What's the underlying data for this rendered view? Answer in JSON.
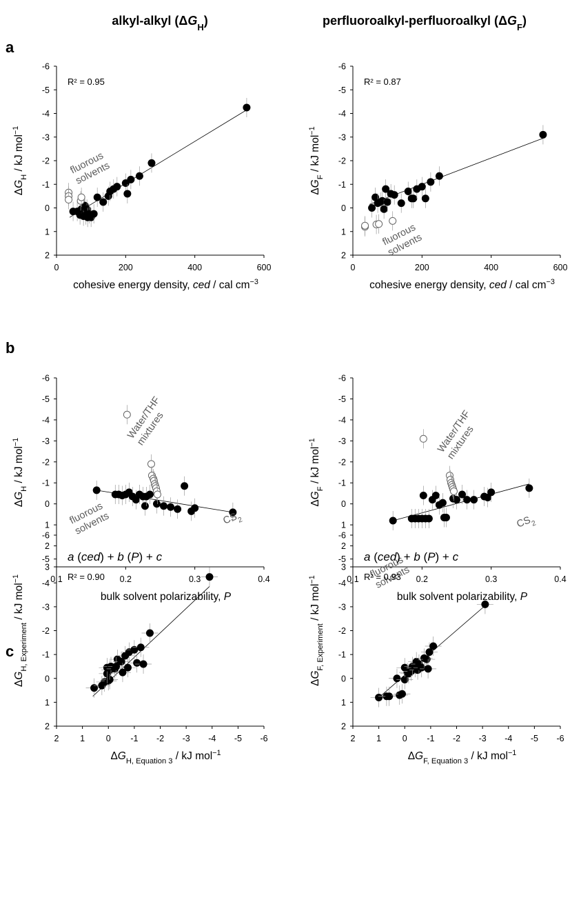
{
  "headers": {
    "left": [
      "alkyl-alkyl (",
      "Δ",
      "G",
      "H",
      ")"
    ],
    "right": [
      "perfluoroalkyl-perfluoroalkyl (",
      "Δ",
      "G",
      "F",
      ")"
    ]
  },
  "panel_letters": [
    "a",
    "b",
    "c"
  ],
  "chart_data": [
    {
      "id": "a-left",
      "type": "scatter",
      "ylabel": [
        "Δ",
        "G",
        "H",
        " / kJ mol",
        "−1"
      ],
      "xlabel": [
        "cohesive energy density, ",
        "ced",
        " / cal cm",
        "−3"
      ],
      "xlim": [
        0,
        600
      ],
      "ylim": [
        2,
        -6
      ],
      "xticks": [
        0,
        200,
        400,
        600
      ],
      "yticks": [
        2,
        1,
        0,
        -1,
        -2,
        -3,
        -4,
        -5,
        -6
      ],
      "r2": "R² = 0.95",
      "annotation": "fluorous\nsolvents",
      "series": [
        {
          "filled": true,
          "points": [
            [
              48,
              0.15
            ],
            [
              60,
              0.15
            ],
            [
              68,
              0.3
            ],
            [
              72,
              0.05
            ],
            [
              78,
              0.35
            ],
            [
              82,
              -0.1
            ],
            [
              85,
              0.3
            ],
            [
              88,
              0.05
            ],
            [
              90,
              0.4
            ],
            [
              95,
              0.25
            ],
            [
              100,
              0.4
            ],
            [
              108,
              0.25
            ],
            [
              118,
              -0.45
            ],
            [
              135,
              -0.25
            ],
            [
              150,
              -0.5
            ],
            [
              155,
              -0.7
            ],
            [
              165,
              -0.8
            ],
            [
              175,
              -0.9
            ],
            [
              200,
              -1.05
            ],
            [
              205,
              -0.6
            ],
            [
              215,
              -1.2
            ],
            [
              240,
              -1.35
            ],
            [
              275,
              -1.9
            ],
            [
              550,
              -4.25
            ]
          ]
        },
        {
          "filled": false,
          "points": [
            [
              35,
              -0.65
            ],
            [
              35,
              -0.5
            ],
            [
              35,
              -0.35
            ],
            [
              70,
              -0.3
            ],
            [
              72,
              -0.45
            ]
          ]
        }
      ],
      "fit_line": [
        [
          38,
          0.4
        ],
        [
          550,
          -4.15
        ]
      ]
    },
    {
      "id": "a-right",
      "type": "scatter",
      "ylabel": [
        "Δ",
        "G",
        "F",
        " / kJ mol",
        "−1"
      ],
      "xlabel": [
        "cohesive energy density, ",
        "ced",
        " / cal cm",
        "−3"
      ],
      "xlim": [
        0,
        600
      ],
      "ylim": [
        2,
        -6
      ],
      "xticks": [
        0,
        200,
        400,
        600
      ],
      "yticks": [
        2,
        1,
        0,
        -1,
        -2,
        -3,
        -4,
        -5,
        -6
      ],
      "r2": "R² = 0.87",
      "annotation": "fluorous\nsolvents",
      "series": [
        {
          "filled": true,
          "points": [
            [
              55,
              0
            ],
            [
              65,
              -0.45
            ],
            [
              72,
              -0.2
            ],
            [
              80,
              -0.25
            ],
            [
              85,
              -0.3
            ],
            [
              90,
              0.05
            ],
            [
              95,
              -0.8
            ],
            [
              100,
              -0.25
            ],
            [
              110,
              -0.6
            ],
            [
              120,
              -0.55
            ],
            [
              140,
              -0.2
            ],
            [
              160,
              -0.7
            ],
            [
              170,
              -0.4
            ],
            [
              175,
              -0.4
            ],
            [
              185,
              -0.8
            ],
            [
              200,
              -0.9
            ],
            [
              210,
              -0.4
            ],
            [
              225,
              -1.1
            ],
            [
              250,
              -1.35
            ],
            [
              550,
              -3.1
            ]
          ]
        },
        {
          "filled": false,
          "points": [
            [
              35,
              0.8
            ],
            [
              35,
              0.75
            ],
            [
              68,
              0.7
            ],
            [
              75,
              0.68
            ],
            [
              115,
              0.55
            ]
          ]
        }
      ],
      "fit_line": [
        [
          48,
          -0.15
        ],
        [
          550,
          -2.95
        ]
      ]
    },
    {
      "id": "b-left",
      "type": "scatter",
      "ylabel": [
        "Δ",
        "G",
        "H",
        " / kJ mol",
        "−1"
      ],
      "xlabel": [
        "bulk solvent polarizability, ",
        "P"
      ],
      "xlim": [
        0.1,
        0.4
      ],
      "ylim": [
        3,
        -6
      ],
      "xticks": [
        0.1,
        0.2,
        0.3,
        0.4
      ],
      "yticks": [
        3,
        2,
        1,
        0,
        -1,
        -2,
        -3,
        -4,
        -5,
        -6
      ],
      "annotation": "fluorous\nsolvents",
      "annotation2": "Water/THF\nmixtures",
      "annotation3": [
        "CS",
        "2"
      ],
      "series": [
        {
          "filled": true,
          "points": [
            [
              0.158,
              -0.65
            ],
            [
              0.185,
              -0.45
            ],
            [
              0.19,
              -0.45
            ],
            [
              0.195,
              -0.4
            ],
            [
              0.2,
              -0.45
            ],
            [
              0.205,
              -0.55
            ],
            [
              0.21,
              -0.35
            ],
            [
              0.215,
              -0.2
            ],
            [
              0.22,
              -0.45
            ],
            [
              0.225,
              -0.35
            ],
            [
              0.228,
              0.1
            ],
            [
              0.23,
              -0.35
            ],
            [
              0.235,
              -0.45
            ],
            [
              0.245,
              0
            ],
            [
              0.255,
              0.1
            ],
            [
              0.265,
              0.15
            ],
            [
              0.275,
              0.25
            ],
            [
              0.285,
              -0.85
            ],
            [
              0.295,
              0.35
            ],
            [
              0.3,
              0.2
            ],
            [
              0.355,
              0.4
            ]
          ]
        },
        {
          "filled": false,
          "points": [
            [
              0.202,
              -4.25
            ],
            [
              0.237,
              -1.9
            ],
            [
              0.238,
              -1.35
            ],
            [
              0.24,
              -1.2
            ],
            [
              0.241,
              -1.1
            ],
            [
              0.242,
              -0.95
            ],
            [
              0.243,
              -0.85
            ],
            [
              0.244,
              -0.75
            ],
            [
              0.245,
              -0.6
            ],
            [
              0.246,
              -0.45
            ]
          ]
        }
      ],
      "fit_line": [
        [
          0.158,
          -0.65
        ],
        [
          0.355,
          0.4
        ]
      ]
    },
    {
      "id": "b-right",
      "type": "scatter",
      "ylabel": [
        "Δ",
        "G",
        "F",
        " / kJ mol",
        "−1"
      ],
      "xlabel": [
        "bulk solvent polarizability, ",
        "P"
      ],
      "xlim": [
        0.1,
        0.4
      ],
      "ylim": [
        3,
        -6
      ],
      "xticks": [
        0.1,
        0.2,
        0.3,
        0.4
      ],
      "yticks": [
        3,
        2,
        1,
        0,
        -1,
        -2,
        -3,
        -4,
        -5,
        -6
      ],
      "annotation": "fluorous\nsolvents",
      "annotation2": "Water/THF\nmixtures",
      "annotation3": [
        "CS",
        "2"
      ],
      "series": [
        {
          "filled": true,
          "points": [
            [
              0.158,
              0.8
            ],
            [
              0.185,
              0.7
            ],
            [
              0.19,
              0.7
            ],
            [
              0.195,
              0.7
            ],
            [
              0.2,
              0.7
            ],
            [
              0.202,
              -0.4
            ],
            [
              0.205,
              0.7
            ],
            [
              0.21,
              0.7
            ],
            [
              0.215,
              -0.2
            ],
            [
              0.22,
              -0.4
            ],
            [
              0.225,
              0.05
            ],
            [
              0.23,
              -0.05
            ],
            [
              0.232,
              0.65
            ],
            [
              0.235,
              0.65
            ],
            [
              0.245,
              -0.25
            ],
            [
              0.25,
              -0.2
            ],
            [
              0.258,
              -0.45
            ],
            [
              0.265,
              -0.2
            ],
            [
              0.275,
              -0.2
            ],
            [
              0.29,
              -0.35
            ],
            [
              0.295,
              -0.3
            ],
            [
              0.3,
              -0.55
            ],
            [
              0.355,
              -0.75
            ]
          ]
        },
        {
          "filled": false,
          "points": [
            [
              0.202,
              -3.1
            ],
            [
              0.24,
              -1.35
            ],
            [
              0.241,
              -1.15
            ],
            [
              0.242,
              -1.0
            ],
            [
              0.243,
              -0.9
            ],
            [
              0.244,
              -0.8
            ],
            [
              0.245,
              -0.7
            ],
            [
              0.246,
              -0.6
            ]
          ]
        }
      ],
      "fit_line": [
        [
          0.158,
          0.8
        ],
        [
          0.355,
          -0.95
        ]
      ]
    },
    {
      "id": "c-left",
      "type": "scatter",
      "ylabel": [
        "Δ",
        "G",
        "H, Experiment",
        " / kJ mol",
        "−1"
      ],
      "xlabel": [
        "Δ",
        "G",
        "H, Equation 3",
        " / kJ mol",
        "−1"
      ],
      "xlim": [
        2,
        -6
      ],
      "ylim": [
        2,
        -6
      ],
      "xticks": [
        2,
        1,
        0,
        -1,
        -2,
        -3,
        -4,
        -5,
        -6
      ],
      "yticks": [
        2,
        1,
        0,
        -1,
        -2,
        -3,
        -4,
        -5,
        -6
      ],
      "equation": [
        "a",
        " (",
        "ced",
        ") + ",
        "b",
        " (",
        "P",
        ") + ",
        "c"
      ],
      "r2": "R² = 0.90",
      "series": [
        {
          "filled": true,
          "points": [
            [
              0.55,
              0.4
            ],
            [
              0.25,
              0.3
            ],
            [
              0.15,
              0.15
            ],
            [
              0,
              0.1
            ],
            [
              -0.05,
              0.05
            ],
            [
              0.05,
              -0.2
            ],
            [
              -0.05,
              -0.35
            ],
            [
              0.05,
              -0.45
            ],
            [
              -0.1,
              -0.5
            ],
            [
              -0.25,
              -0.4
            ],
            [
              -0.35,
              -0.8
            ],
            [
              -0.3,
              -0.5
            ],
            [
              -0.5,
              -0.7
            ],
            [
              -0.55,
              -0.25
            ],
            [
              -0.65,
              -0.95
            ],
            [
              -0.75,
              -0.45
            ],
            [
              -0.8,
              -1.1
            ],
            [
              -1,
              -1.2
            ],
            [
              -1.1,
              -0.65
            ],
            [
              -1.25,
              -1.3
            ],
            [
              -1.35,
              -0.6
            ],
            [
              -1.6,
              -1.9
            ],
            [
              -3.9,
              -4.25
            ]
          ]
        }
      ],
      "fit_line": [
        [
          0.6,
          0.75
        ],
        [
          -3.9,
          -3.85
        ]
      ]
    },
    {
      "id": "c-right",
      "type": "scatter",
      "ylabel": [
        "Δ",
        "G",
        "F, Experiment",
        " / kJ mol",
        "−1"
      ],
      "xlabel": [
        "Δ",
        "G",
        "F, Equation 3",
        " / kJ mol",
        "−1"
      ],
      "xlim": [
        2,
        -6
      ],
      "ylim": [
        2,
        -6
      ],
      "xticks": [
        2,
        1,
        0,
        -1,
        -2,
        -3,
        -4,
        -5,
        -6
      ],
      "yticks": [
        2,
        1,
        0,
        -1,
        -2,
        -3,
        -4,
        -5,
        -6
      ],
      "equation": [
        "a",
        " (",
        "ced",
        ") + ",
        "b",
        " (",
        "P",
        ") + ",
        "c"
      ],
      "r2": "R² = 0.93",
      "series": [
        {
          "filled": true,
          "points": [
            [
              1,
              0.8
            ],
            [
              0.7,
              0.75
            ],
            [
              0.6,
              0.75
            ],
            [
              0.2,
              0.7
            ],
            [
              0.1,
              0.65
            ],
            [
              0.3,
              0
            ],
            [
              0,
              0.05
            ],
            [
              0,
              -0.45
            ],
            [
              -0.1,
              -0.25
            ],
            [
              -0.15,
              -0.2
            ],
            [
              -0.25,
              -0.3
            ],
            [
              -0.3,
              -0.5
            ],
            [
              -0.4,
              -0.45
            ],
            [
              -0.45,
              -0.7
            ],
            [
              -0.5,
              -0.35
            ],
            [
              -0.55,
              -0.6
            ],
            [
              -0.65,
              -0.45
            ],
            [
              -0.75,
              -0.85
            ],
            [
              -0.85,
              -0.8
            ],
            [
              -0.9,
              -0.4
            ],
            [
              -0.95,
              -1.1
            ],
            [
              -1.1,
              -1.35
            ],
            [
              -3.1,
              -3.1
            ]
          ]
        }
      ],
      "fit_line": [
        [
          1.05,
          0.85
        ],
        [
          -3.05,
          -3.0
        ]
      ]
    }
  ]
}
